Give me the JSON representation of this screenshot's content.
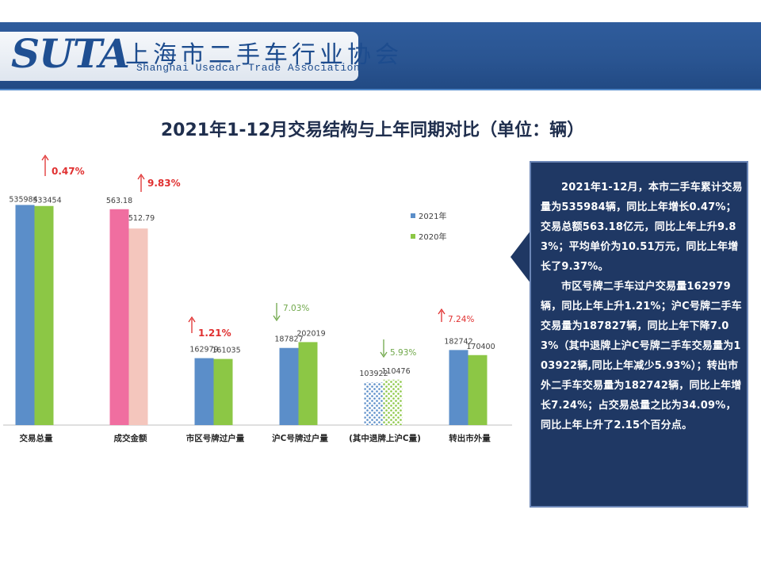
{
  "header": {
    "logo_text": "SUTA",
    "org_name_cn": "上海市二手车行业协会",
    "org_name_en": "Shanghai Usedcar Trade Association"
  },
  "title": "2021年1-12月交易结构与上年同期对比（单位：辆）",
  "colors": {
    "header_bg": "#2a5592",
    "panel_bg": "#1f3864",
    "series_2021": "#5b8ec9",
    "series_2020": "#8cc745",
    "amount_2021": "#f06ea0",
    "amount_2020": "#f4c6bd",
    "up_arrow": "#e03030",
    "down_arrow": "#70a84a"
  },
  "chart_data": {
    "type": "bar",
    "categories": [
      "交易总量",
      "成交金额",
      "市区号牌过户量",
      "沪C号牌过户量",
      "(其中退牌上沪C量)",
      "转出市外量"
    ],
    "series": [
      {
        "name": "2021年",
        "values": [
          535984,
          563.18,
          162979,
          187827,
          103922,
          182742
        ]
      },
      {
        "name": "2020年",
        "values": [
          533454,
          512.79,
          161035,
          202019,
          110476,
          170400
        ]
      }
    ],
    "value_labels_2021": [
      "535984",
      "563.18",
      "162979",
      "187827",
      "103922",
      "182742"
    ],
    "value_labels_2020": [
      "533454",
      "512.79",
      "161035",
      "202019",
      "110476",
      "170400"
    ],
    "changes": [
      {
        "text": "0.47%",
        "direction": "up"
      },
      {
        "text": "9.83%",
        "direction": "up"
      },
      {
        "text": "1.21%",
        "direction": "up"
      },
      {
        "text": "7.03%",
        "direction": "down"
      },
      {
        "text": "5.93%",
        "direction": "down"
      },
      {
        "text": "7.24%",
        "direction": "up"
      }
    ],
    "legend": [
      "2021年",
      "2020年"
    ],
    "legend_position": "right",
    "grid": false
  },
  "summary": {
    "paragraph1": "2021年1-12月，本市二手车累计交易量为535984辆，同比上年增长0.47%；交易总额563.18亿元，同比上年上升9.83%；平均单价为10.51万元，同比上年增长了9.37%。",
    "paragraph2": "市区号牌二手车过户交易量162979辆，同比上年上升1.21%；沪C号牌二手车交易量为187827辆，同比上年下降7.03%（其中退牌上沪C号牌二手车交易量为103922辆,同比上年减少5.93%）；转出市外二手车交易量为182742辆，同比上年增长7.24%；占交易总量之比为34.09%，同比上年上升了2.15个百分点。"
  }
}
